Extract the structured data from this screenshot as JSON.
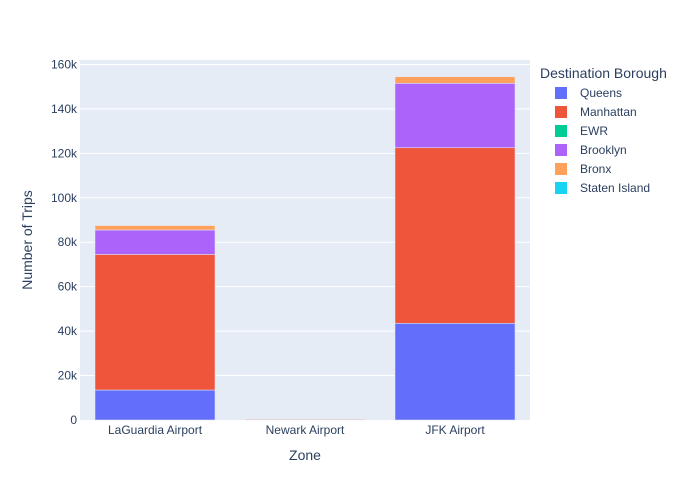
{
  "chart_data": {
    "type": "bar",
    "barmode": "stack",
    "categories": [
      "LaGuardia Airport",
      "Newark Airport",
      "JFK Airport"
    ],
    "series": [
      {
        "name": "Queens",
        "color": "#636efa",
        "values": [
          13500,
          200,
          43500
        ]
      },
      {
        "name": "Manhattan",
        "color": "#EF553B",
        "values": [
          61000,
          300,
          79000
        ]
      },
      {
        "name": "EWR",
        "color": "#00cc96",
        "values": [
          0,
          0,
          0
        ]
      },
      {
        "name": "Brooklyn",
        "color": "#ab63fa",
        "values": [
          11000,
          100,
          29000
        ]
      },
      {
        "name": "Bronx",
        "color": "#FFA15A",
        "values": [
          2000,
          0,
          3000
        ]
      },
      {
        "name": "Staten Island",
        "color": "#19d3f3",
        "values": [
          0,
          0,
          0
        ]
      }
    ],
    "xlabel": "Zone",
    "ylabel": "Number of Trips",
    "ylim": [
      0,
      162000
    ],
    "yticks": [
      0,
      20000,
      40000,
      60000,
      80000,
      100000,
      120000,
      140000,
      160000
    ],
    "ytick_labels": [
      "0",
      "20k",
      "40k",
      "60k",
      "80k",
      "100k",
      "120k",
      "140k",
      "160k"
    ],
    "grid": true,
    "legend_title": "Destination Borough",
    "legend_position": "right"
  }
}
